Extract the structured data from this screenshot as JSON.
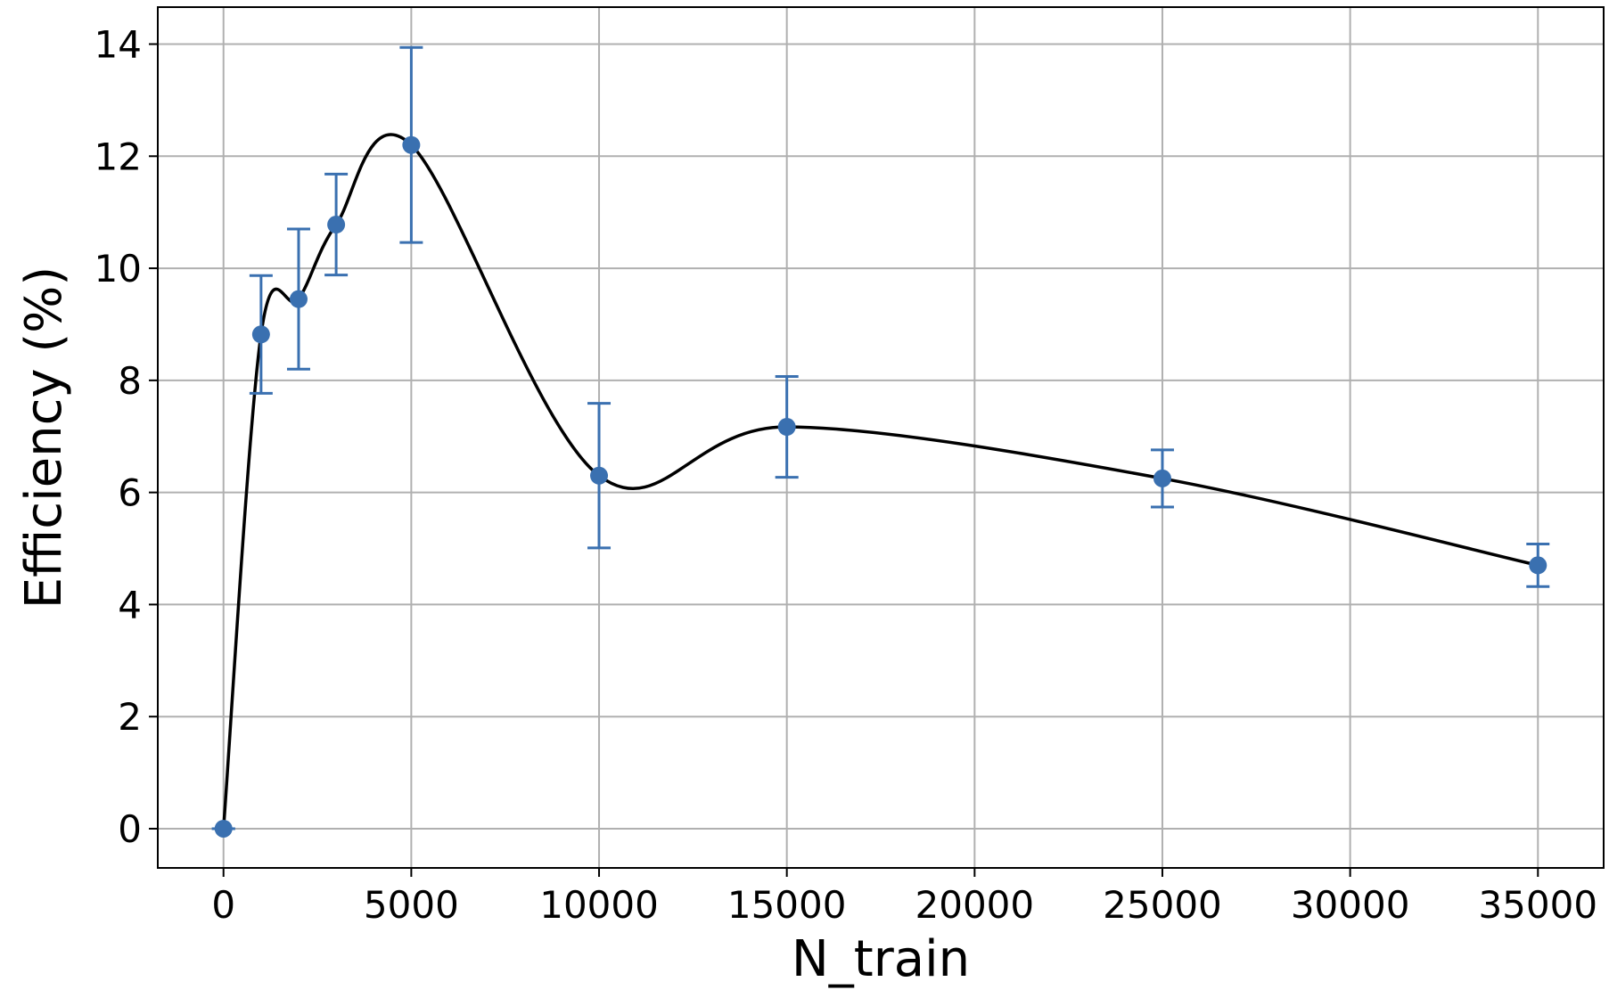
{
  "chart_data": {
    "type": "scatter",
    "x_label": "N_train",
    "y_label": "Efficiency (%)",
    "x": [
      0,
      1000,
      2000,
      3000,
      5000,
      10000,
      15000,
      25000,
      35000
    ],
    "series": [
      {
        "color": "#3a70b0",
        "line_color": "#000000",
        "values": [
          0,
          8.82,
          9.45,
          10.78,
          12.2,
          6.3,
          7.17,
          6.25,
          4.7
        ],
        "errors": [
          0,
          1.05,
          1.25,
          0.9,
          1.74,
          1.29,
          0.9,
          0.51,
          0.38
        ]
      }
    ],
    "xlim": [
      -1750,
      36750
    ],
    "ylim": [
      -0.7,
      14.66
    ],
    "xticks": [
      0,
      5000,
      10000,
      15000,
      20000,
      25000,
      30000,
      35000
    ],
    "yticks": [
      0,
      2,
      4,
      6,
      8,
      10,
      12,
      14
    ],
    "grid": true
  }
}
